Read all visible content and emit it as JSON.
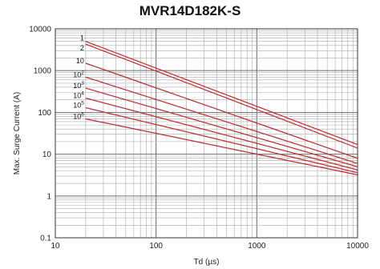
{
  "chart_data": {
    "type": "line",
    "title": "MVR14D182K-S",
    "xlabel": "Td (µs)",
    "ylabel": "Max. Surge Current (A)",
    "xscale": "log",
    "yscale": "log",
    "xlim": [
      10,
      10000
    ],
    "ylim": [
      0.1,
      10000
    ],
    "grid": true,
    "x_ticks": [
      "10",
      "100",
      "1000",
      "10000"
    ],
    "y_ticks": [
      "0.1",
      "1",
      "10",
      "100",
      "1000",
      "10000"
    ],
    "line_color": "#c0282d",
    "series": [
      {
        "name": "1",
        "label_html": "1",
        "x": [
          20,
          10000
        ],
        "y": [
          5000,
          17
        ]
      },
      {
        "name": "2",
        "label_html": "2",
        "x": [
          20,
          10000
        ],
        "y": [
          4300,
          14
        ]
      },
      {
        "name": "10",
        "label_html": "10",
        "x": [
          20,
          10000
        ],
        "y": [
          1500,
          8
        ]
      },
      {
        "name": "10²",
        "base": "10",
        "exp": "2",
        "x": [
          20,
          10000
        ],
        "y": [
          700,
          6
        ]
      },
      {
        "name": "10³",
        "base": "10",
        "exp": "3",
        "x": [
          20,
          10000
        ],
        "y": [
          380,
          5
        ]
      },
      {
        "name": "10⁴",
        "base": "10",
        "exp": "4",
        "x": [
          20,
          10000
        ],
        "y": [
          220,
          4.2
        ]
      },
      {
        "name": "10⁵",
        "base": "10",
        "exp": "5",
        "x": [
          20,
          10000
        ],
        "y": [
          130,
          3.6
        ]
      },
      {
        "name": "10⁶",
        "base": "10",
        "exp": "6",
        "x": [
          20,
          10000
        ],
        "y": [
          70,
          3.2
        ]
      }
    ]
  }
}
